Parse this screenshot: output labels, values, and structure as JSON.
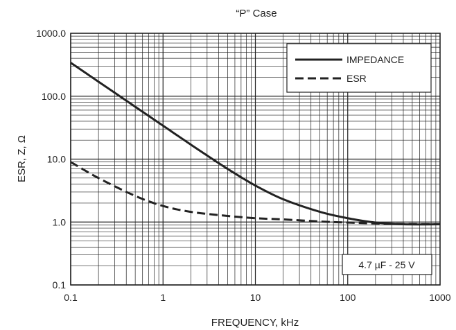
{
  "chart_data": {
    "type": "line",
    "title": "“P” Case",
    "xlabel": "FREQUENCY, kHz",
    "ylabel": "ESR, Z, Ω",
    "x_scale": "log",
    "y_scale": "log",
    "xlim": [
      0.1,
      1000
    ],
    "ylim": [
      0.1,
      1000
    ],
    "x_ticks": [
      "0.1",
      "1",
      "10",
      "100",
      "1000"
    ],
    "y_ticks": [
      "0.1",
      "1.0",
      "10.0",
      "100.0",
      "1000.0"
    ],
    "grid": true,
    "legend_position": "top-right",
    "annotation": "4.7 µF - 25 V",
    "series": [
      {
        "name": "IMPEDANCE",
        "style": "solid",
        "color": "#222222",
        "x": [
          0.1,
          0.2,
          0.5,
          1,
          2,
          5,
          10,
          20,
          50,
          100,
          200,
          400,
          1000
        ],
        "y": [
          340,
          170,
          68,
          34,
          17,
          7.0,
          3.8,
          2.3,
          1.45,
          1.15,
          0.98,
          0.92,
          0.92
        ]
      },
      {
        "name": "ESR",
        "style": "dashed",
        "color": "#222222",
        "x": [
          0.1,
          0.2,
          0.5,
          1,
          2,
          5,
          10,
          20,
          50,
          100,
          200,
          400,
          1000
        ],
        "y": [
          9.0,
          5.0,
          2.6,
          1.8,
          1.45,
          1.25,
          1.15,
          1.1,
          1.02,
          0.98,
          0.95,
          0.93,
          0.92
        ]
      }
    ]
  }
}
